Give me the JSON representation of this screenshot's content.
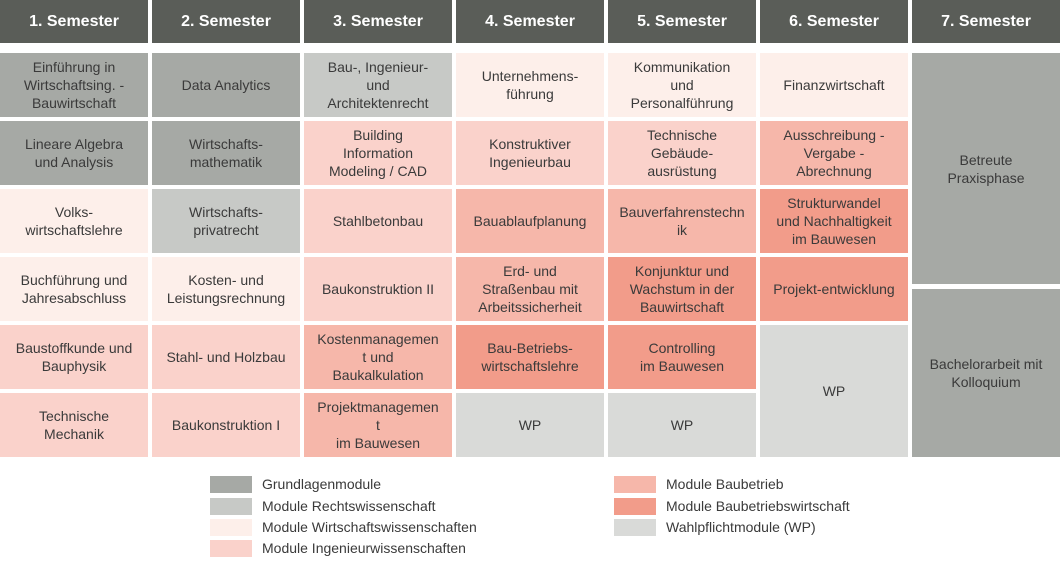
{
  "headers": [
    "1. Semester",
    "2. Semester",
    "3. Semester",
    "4. Semester",
    "5. Semester",
    "6. Semester",
    "7. Semester"
  ],
  "colors": {
    "header": "#5a5d58",
    "grundlagen": "#a6a9a5",
    "recht": "#c7c9c6",
    "wirtschaft": "#fdefea",
    "ingenieur": "#fad2cb",
    "baubetrieb": "#f6b7aa",
    "baubetriebswirtschaft": "#f29c8a",
    "wp": "#d9dad8"
  },
  "modules": [
    [
      {
        "text": "Einführung in\nWirtschaftsing. -\nBauwirtschaft",
        "cat": "grundlagen"
      },
      {
        "text": "Lineare Algebra\nund Analysis",
        "cat": "grundlagen"
      },
      {
        "text": "Volks-\nwirtschaftslehre",
        "cat": "wirtschaft"
      },
      {
        "text": "Buchführung und\nJahresabschluss",
        "cat": "wirtschaft"
      },
      {
        "text": "Baustoffkunde und\nBauphysik",
        "cat": "ingenieur"
      },
      {
        "text": "Technische\nMechanik",
        "cat": "ingenieur"
      }
    ],
    [
      {
        "text": "Data Analytics",
        "cat": "grundlagen"
      },
      {
        "text": "Wirtschafts-\nmathematik",
        "cat": "grundlagen"
      },
      {
        "text": "Wirtschafts-\nprivatrecht",
        "cat": "recht"
      },
      {
        "text": "Kosten- und\nLeistungsrechnung",
        "cat": "wirtschaft"
      },
      {
        "text": "Stahl- und Holzbau",
        "cat": "ingenieur"
      },
      {
        "text": "Baukonstruktion I",
        "cat": "ingenieur"
      }
    ],
    [
      {
        "text": "Bau-, Ingenieur-\nund\nArchitektenrecht",
        "cat": "recht"
      },
      {
        "text": "Building\nInformation\nModeling / CAD",
        "cat": "ingenieur"
      },
      {
        "text": "Stahlbetonbau",
        "cat": "ingenieur"
      },
      {
        "text": "Baukonstruktion II",
        "cat": "ingenieur"
      },
      {
        "text": "Kostenmanagemen\nt und\nBaukalkulation",
        "cat": "baubetrieb"
      },
      {
        "text": "Projektmanagemen\nt\nim Bauwesen",
        "cat": "baubetrieb"
      }
    ],
    [
      {
        "text": "Unternehmens-\nführung",
        "cat": "wirtschaft"
      },
      {
        "text": "Konstruktiver\nIngenieurbau",
        "cat": "ingenieur"
      },
      {
        "text": "Bauablaufplanung",
        "cat": "baubetrieb"
      },
      {
        "text": "Erd- und\nStraßenbau mit\nArbeitssicherheit",
        "cat": "baubetrieb"
      },
      {
        "text": "Bau-Betriebs-\nwirtschaftslehre",
        "cat": "baubetriebswirtschaft"
      },
      {
        "text": "WP",
        "cat": "wp"
      }
    ],
    [
      {
        "text": "Kommunikation\nund\nPersonalführung",
        "cat": "wirtschaft"
      },
      {
        "text": "Technische\nGebäude-\nausrüstung",
        "cat": "ingenieur"
      },
      {
        "text": "Bauverfahrenstechn\nik",
        "cat": "baubetrieb"
      },
      {
        "text": "Konjunktur und\nWachstum in der\nBauwirtschaft",
        "cat": "baubetriebswirtschaft"
      },
      {
        "text": "Controlling\nim Bauwesen",
        "cat": "baubetriebswirtschaft"
      },
      {
        "text": "WP",
        "cat": "wp"
      }
    ],
    [
      {
        "text": "Finanzwirtschaft",
        "cat": "wirtschaft"
      },
      {
        "text": "Ausschreibung -\nVergabe -\nAbrechnung",
        "cat": "baubetrieb"
      },
      {
        "text": "Strukturwandel\nund Nachhaltigkeit\nim Bauwesen",
        "cat": "baubetriebswirtschaft"
      },
      {
        "text": "Projekt-entwicklung",
        "cat": "baubetriebswirtschaft"
      },
      {
        "text": "WP",
        "cat": "wp"
      }
    ],
    [
      {
        "text": "Betreute\nPraxisphase",
        "cat": "grundlagen"
      },
      {
        "text": "Bachelorarbeit mit\nKolloquium",
        "cat": "grundlagen"
      }
    ]
  ],
  "legend": [
    {
      "label": "Grundlagenmodule",
      "cat": "grundlagen"
    },
    {
      "label": "Module Rechtswissenschaft",
      "cat": "recht"
    },
    {
      "label": "Module Wirtschaftswissenschaften",
      "cat": "wirtschaft"
    },
    {
      "label": "Module Ingenieurwissenschaften",
      "cat": "ingenieur"
    },
    {
      "label": "Module Baubetrieb",
      "cat": "baubetrieb"
    },
    {
      "label": "Module Baubetriebswirtschaft",
      "cat": "baubetriebswirtschaft"
    },
    {
      "label": "Wahlpflichtmodule (WP)",
      "cat": "wp"
    }
  ]
}
